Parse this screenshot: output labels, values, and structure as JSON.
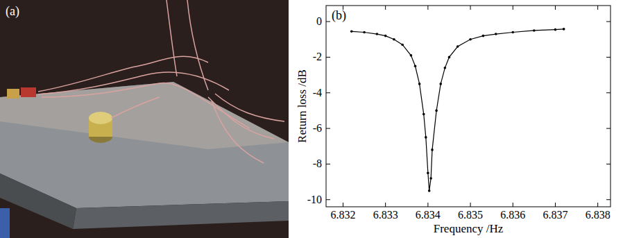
{
  "panel_labels": [
    "(a)",
    "(b)"
  ],
  "chart_data": {
    "type": "line",
    "x_label": "Frequency /Hz",
    "y_label": "Return loss /dB",
    "x": [
      6.8322,
      6.8325,
      6.8328,
      6.833,
      6.8332,
      6.8334,
      6.8336,
      6.8337,
      6.8338,
      6.8339,
      6.83395,
      6.834,
      6.83403,
      6.83407,
      6.8341,
      6.8342,
      6.8343,
      6.8344,
      6.8345,
      6.8347,
      6.835,
      6.8353,
      6.8356,
      6.836,
      6.8365,
      6.837,
      6.8372
    ],
    "values": [
      -0.55,
      -0.6,
      -0.7,
      -0.8,
      -1.0,
      -1.3,
      -1.9,
      -2.5,
      -3.5,
      -5.2,
      -6.5,
      -8.5,
      -9.5,
      -8.8,
      -7.2,
      -5.0,
      -3.5,
      -2.6,
      -2.0,
      -1.4,
      -1.0,
      -0.8,
      -0.7,
      -0.6,
      -0.5,
      -0.45,
      -0.42
    ],
    "color": "#000000",
    "marker": "dot",
    "line_style": "solid",
    "xlim": [
      6.8316,
      6.8383
    ],
    "xticks": [
      6.832,
      6.833,
      6.834,
      6.835,
      6.836,
      6.837,
      6.838
    ],
    "ylim": [
      -10.4,
      0.9
    ],
    "yticks": [
      0,
      -2,
      -4,
      -6,
      -8,
      -10
    ]
  }
}
